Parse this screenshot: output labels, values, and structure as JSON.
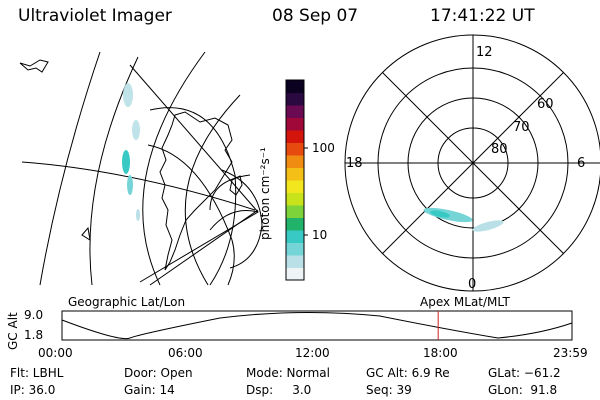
{
  "header": {
    "title": "Ultraviolet Imager",
    "date": "08 Sep 07",
    "time": "17:41:22 UT"
  },
  "colorbar": {
    "unit_label": "photon cm⁻²s⁻¹",
    "ticks": [
      "100",
      "10"
    ],
    "colors": [
      "#eef3f5",
      "#b8e0e6",
      "#74d4d6",
      "#39c9c4",
      "#22b36a",
      "#7dd33a",
      "#c8e21c",
      "#f2e61e",
      "#f4bf16",
      "#f08c12",
      "#e64a0f",
      "#d4150b",
      "#a0083a",
      "#6a0a52",
      "#2a0840",
      "#0a0220"
    ]
  },
  "polar": {
    "mlt_labels": {
      "top": "12",
      "left": "18",
      "right": "6",
      "bottom": "0"
    },
    "lat_labels": [
      "60",
      "70",
      "80"
    ]
  },
  "orbit_panel": {
    "left_title": "Geographic Lat/Lon",
    "right_title": "Apex MLat/MLT",
    "y_axis_label": "GC Alt",
    "y_ticks": [
      "9.0",
      "1.8"
    ],
    "x_ticks": [
      "00:00",
      "06:00",
      "12:00",
      "18:00",
      "23:59"
    ],
    "marker_hour": 17.69,
    "marker_color": "#cc2222"
  },
  "status": {
    "row1": [
      "Flt: LBHL",
      "Door: Open",
      "Mode: Normal",
      "GC Alt: 6.9 Re",
      "GLat: −61.2"
    ],
    "row2": [
      "IP: 36.0",
      "Gain: 14",
      "Dsp:     3.0",
      "Seq: 39",
      "GLon:  91.8"
    ]
  }
}
